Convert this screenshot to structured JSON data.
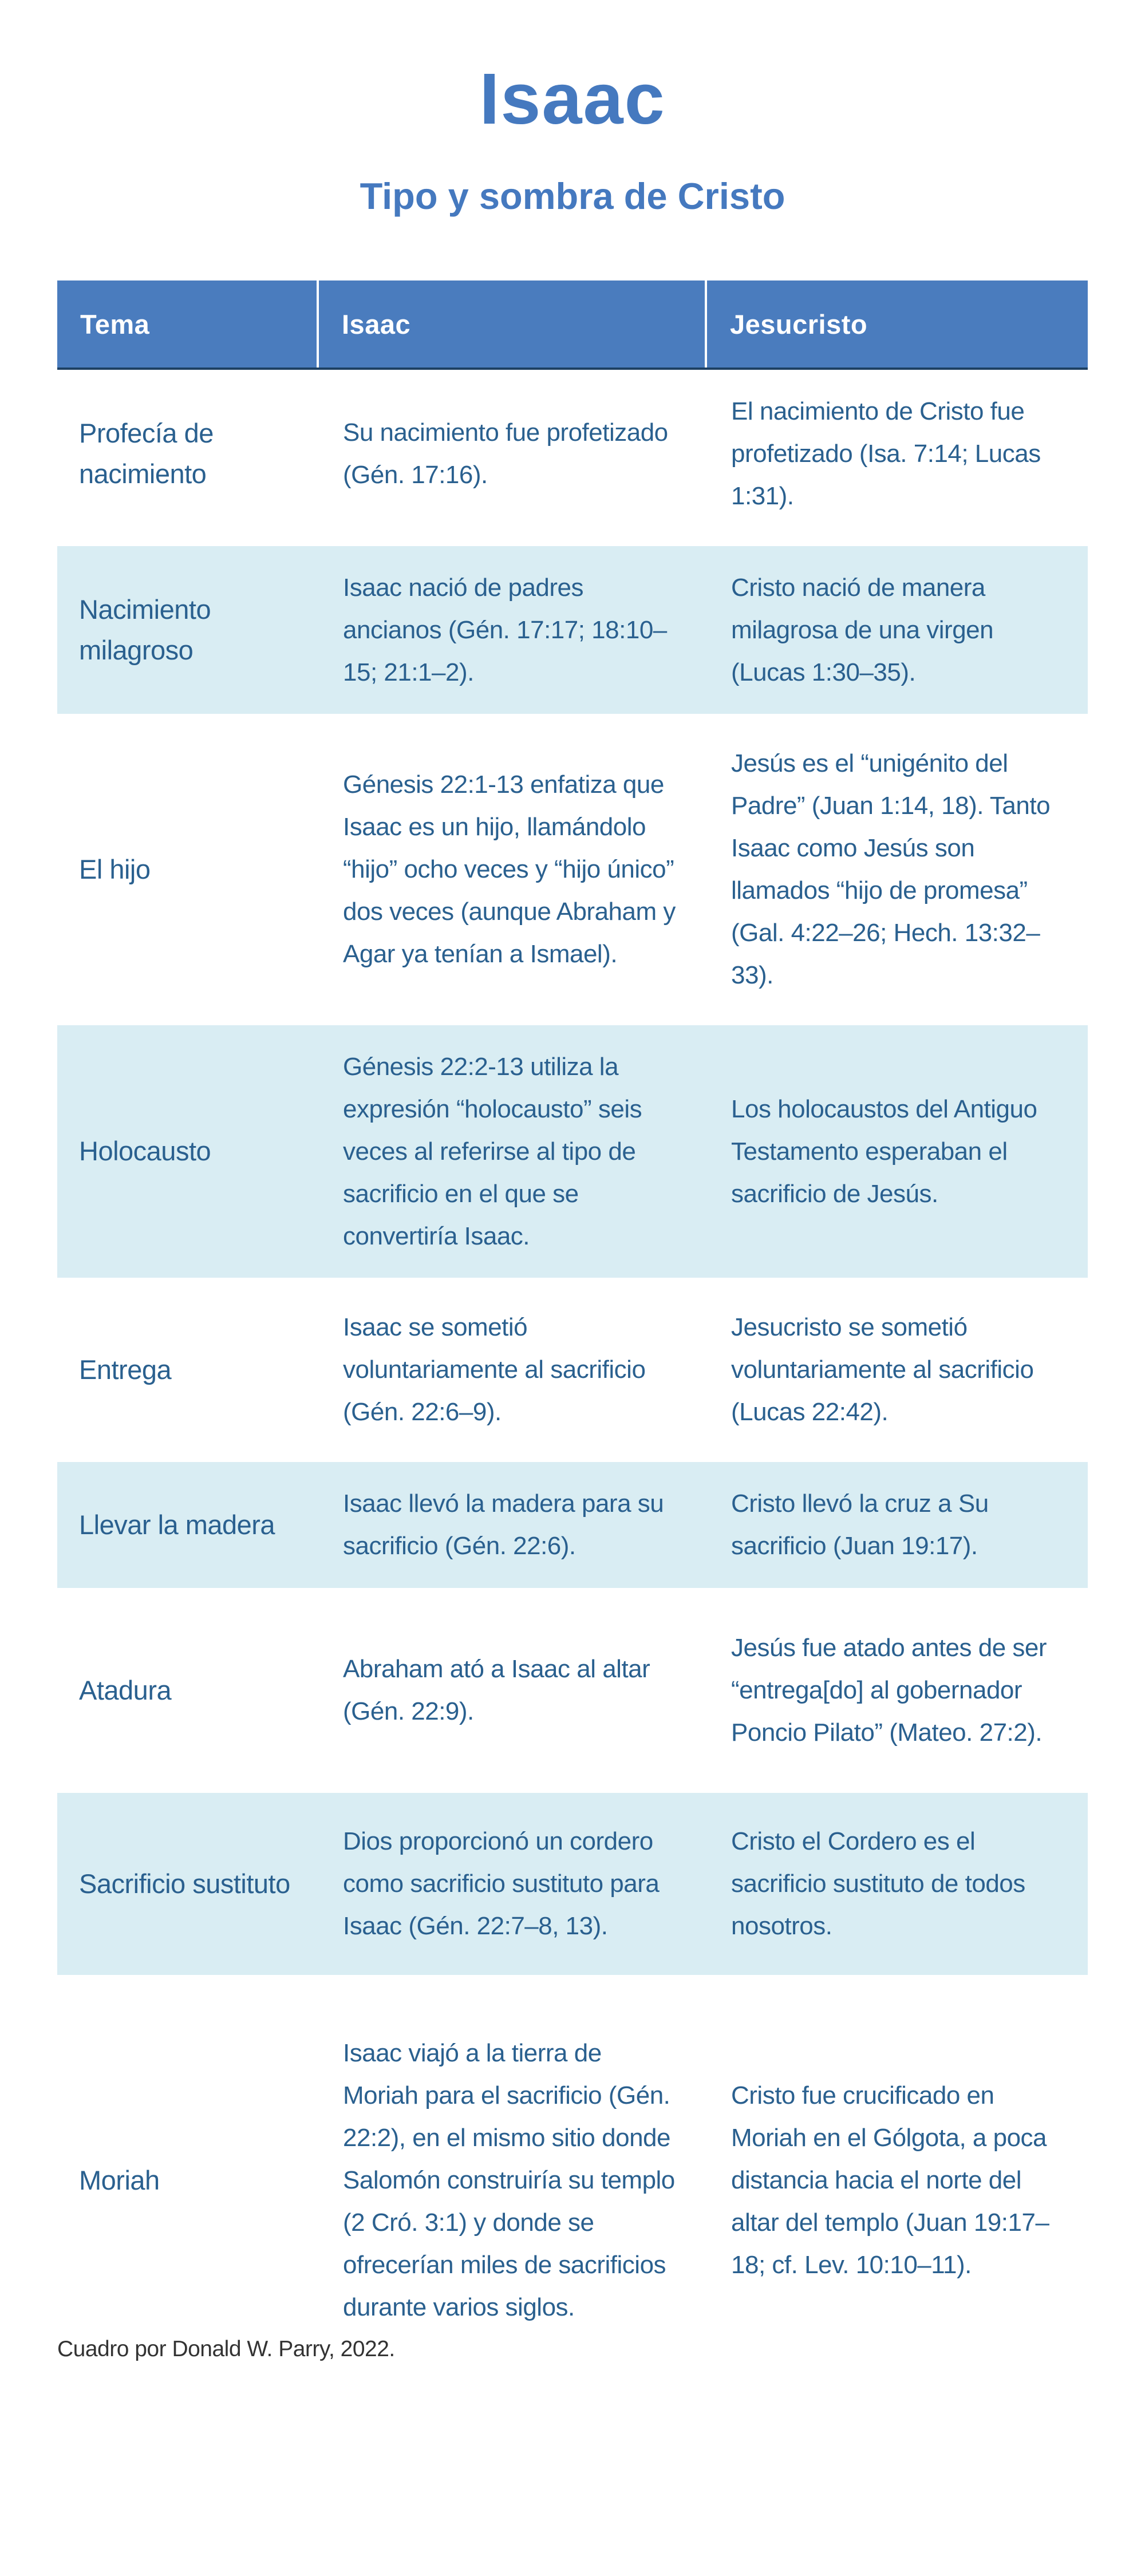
{
  "page": {
    "title": "Isaac",
    "subtitle": "Tipo y sombra de Cristo",
    "footer": "Cuadro por Donald W. Parry, 2022."
  },
  "colors": {
    "accent_blue": "#4579bf",
    "header_bg": "#4a7cbe",
    "header_text": "#ffffff",
    "header_bottom_border": "#1e4063",
    "row_alt_bg": "#d9edf3",
    "body_text_navy": "#2a608f",
    "footer_text": "#333333"
  },
  "table": {
    "headers": [
      "Tema",
      "Isaac",
      "Jesucristo"
    ],
    "rows": [
      {
        "tema": "Profecía de nacimiento",
        "isaac": "Su nacimiento fue profetizado (Gén. 17:16).",
        "jesucristo": "El nacimiento de Cristo fue profetizado (Isa. 7:14; Lucas 1:31)."
      },
      {
        "tema": "Nacimiento milagroso",
        "isaac": "Isaac nació de padres ancianos (Gén. 17:17; 18:10–15; 21:1–2).",
        "jesucristo": "Cristo nació de manera milagrosa de una virgen (Lucas 1:30–35)."
      },
      {
        "tema": "El hijo",
        "isaac": "Génesis 22:1-13 enfatiza que Isaac es un hijo, llamándolo “hijo” ocho veces y “hijo único” dos veces (aunque Abraham y Agar ya tenían a Ismael).",
        "jesucristo": "Jesús es el “unigénito del Padre” (Juan 1:14, 18). Tanto Isaac como Jesús son llamados “hijo de promesa” (Gal. 4:22–26; Hech. 13:32–33)."
      },
      {
        "tema": "Holocausto",
        "isaac": "Génesis 22:2-13 utiliza la expresión “holocausto” seis veces al referirse al tipo de sacrificio en el que se convertiría Isaac.",
        "jesucristo": "Los holocaustos del Antiguo Testamento esperaban el sacrificio de Jesús."
      },
      {
        "tema": "Entrega",
        "isaac": "Isaac se sometió voluntariamente al sacrificio (Gén. 22:6–9).",
        "jesucristo": "Jesucristo se sometió voluntariamente al sacrificio (Lucas 22:42)."
      },
      {
        "tema": "Llevar la madera",
        "isaac": "Isaac llevó la madera para su sacrificio (Gén. 22:6).",
        "jesucristo": "Cristo llevó la cruz a Su sacrificio (Juan 19:17)."
      },
      {
        "tema": "Atadura",
        "isaac": "Abraham ató a Isaac al altar (Gén. 22:9).",
        "jesucristo": "Jesús fue atado antes de ser “entrega[do] al gobernador Poncio Pilato” (Mateo. 27:2)."
      },
      {
        "tema": "Sacrificio sustituto",
        "isaac": "Dios proporcionó un cordero como sacrificio sustituto para Isaac (Gén. 22:7–8, 13).",
        "jesucristo": "Cristo el Cordero es el sacrificio sustituto de todos nosotros."
      },
      {
        "tema": "Moriah",
        "isaac": "Isaac viajó a la tierra de Moriah para el sacrificio (Gén. 22:2), en el mismo sitio donde Salomón construiría su templo (2 Cró. 3:1) y donde se ofrecerían miles de sacrificios durante varios siglos.",
        "jesucristo": "Cristo fue crucificado en Moriah en el Gólgota, a poca distancia hacia el norte del altar del templo (Juan 19:17–18; cf. Lev. 10:10–11)."
      }
    ]
  }
}
